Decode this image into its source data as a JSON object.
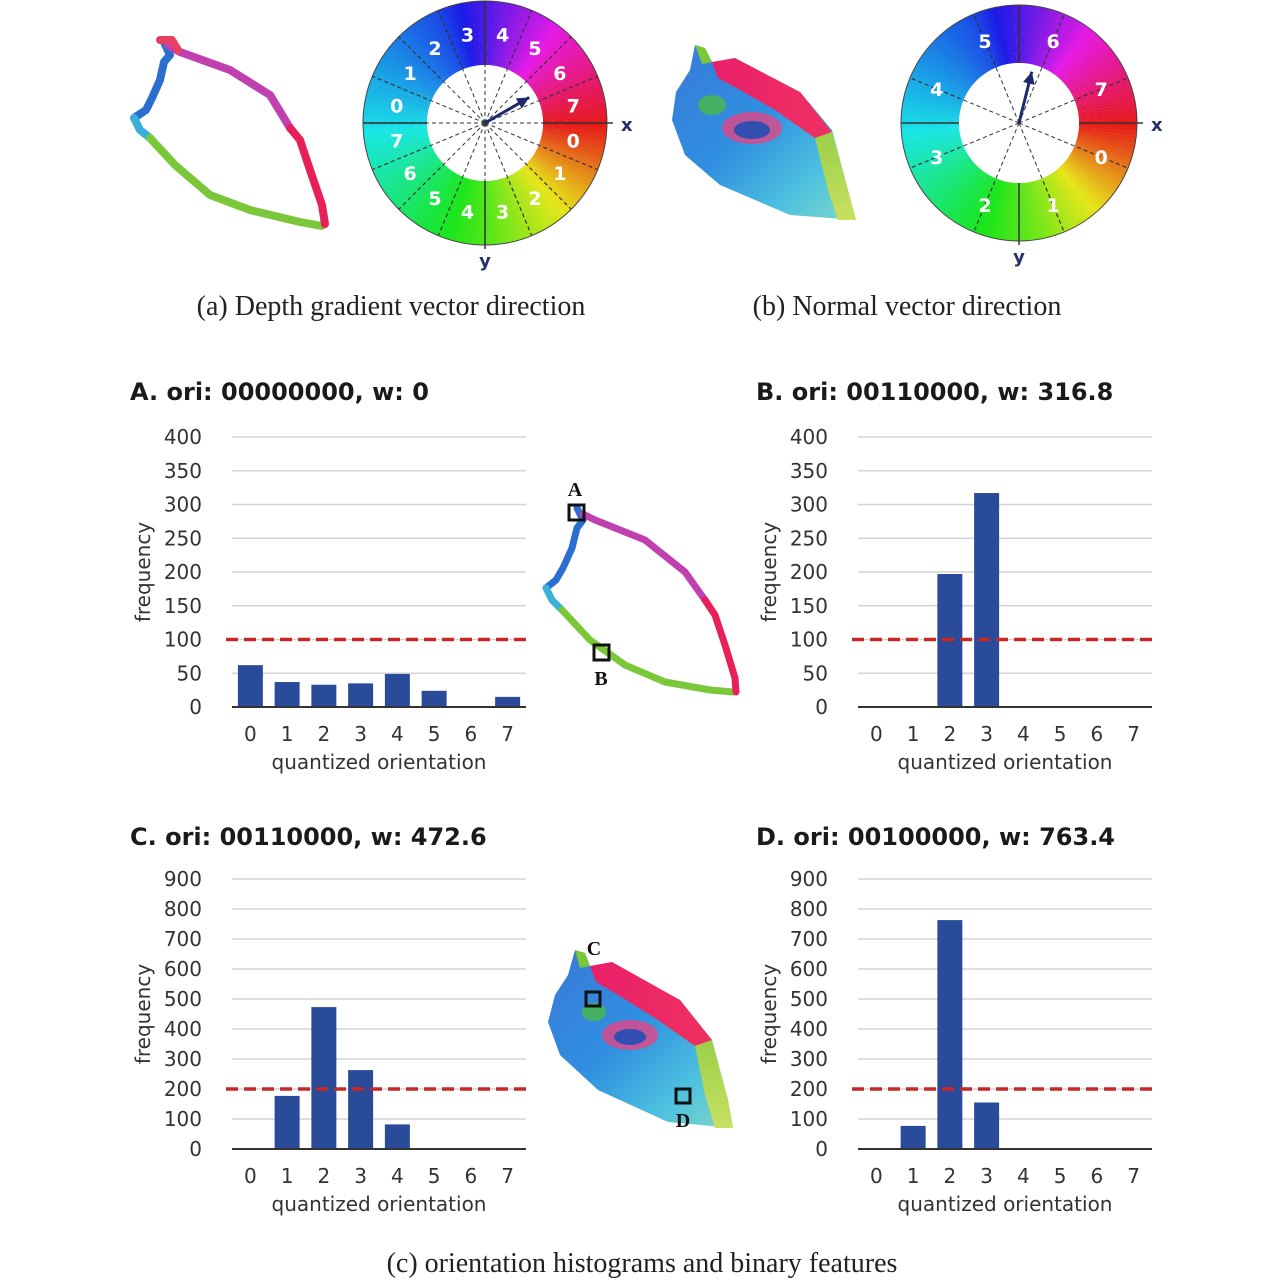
{
  "captions": {
    "a": "(a) Depth gradient vector direction",
    "b": "(b) Normal vector direction",
    "c": "(c) orientation histograms and binary features"
  },
  "wheel_a": {
    "labels": [
      "0",
      "1",
      "2",
      "3",
      "4",
      "5",
      "6",
      "7",
      "0",
      "1",
      "2",
      "3",
      "4",
      "5",
      "6",
      "7"
    ],
    "x_label": "x",
    "y_label": "y",
    "arrow_bin": "6"
  },
  "wheel_b": {
    "labels": [
      "0",
      "1",
      "2",
      "3",
      "4",
      "5",
      "6",
      "7"
    ],
    "x_label": "x",
    "y_label": "y",
    "arrow_bin": "6"
  },
  "markers": {
    "A": "A",
    "B": "B",
    "C": "C",
    "D": "D"
  },
  "chart_data": [
    {
      "type": "bar",
      "title": "A.  ori: 00000000, w: 0",
      "categories": [
        "0",
        "1",
        "2",
        "3",
        "4",
        "5",
        "6",
        "7"
      ],
      "values": [
        62,
        37,
        33,
        35,
        49,
        24,
        0,
        15
      ],
      "ylim": [
        0,
        400
      ],
      "yticks": [
        "0",
        "50",
        "100",
        "150",
        "200",
        "250",
        "300",
        "350",
        "400"
      ],
      "ytick_values": [
        0,
        50,
        100,
        150,
        200,
        250,
        300,
        350,
        400
      ],
      "threshold": 100,
      "xlabel": "quantized orientation",
      "ylabel": "frequency"
    },
    {
      "type": "bar",
      "title": "B.  ori: 00110000, w: 316.8",
      "categories": [
        "0",
        "1",
        "2",
        "3",
        "4",
        "5",
        "6",
        "7"
      ],
      "values": [
        0,
        0,
        197,
        317,
        0,
        0,
        0,
        0
      ],
      "ylim": [
        0,
        400
      ],
      "yticks": [
        "0",
        "50",
        "100",
        "150",
        "200",
        "250",
        "300",
        "350",
        "400"
      ],
      "ytick_values": [
        0,
        50,
        100,
        150,
        200,
        250,
        300,
        350,
        400
      ],
      "threshold": 100,
      "xlabel": "quantized orientation",
      "ylabel": "frequency"
    },
    {
      "type": "bar",
      "title": "C.  ori: 00110000, w: 472.6",
      "categories": [
        "0",
        "1",
        "2",
        "3",
        "4",
        "5",
        "6",
        "7"
      ],
      "values": [
        0,
        177,
        473,
        263,
        82,
        0,
        0,
        0
      ],
      "ylim": [
        0,
        900
      ],
      "yticks": [
        "0",
        "100",
        "200",
        "300",
        "400",
        "500",
        "600",
        "700",
        "800",
        "900"
      ],
      "ytick_values": [
        0,
        100,
        200,
        300,
        400,
        500,
        600,
        700,
        800,
        900
      ],
      "threshold": 200,
      "xlabel": "quantized orientation",
      "ylabel": "frequency"
    },
    {
      "type": "bar",
      "title": "D.  ori: 00100000, w: 763.4",
      "categories": [
        "0",
        "1",
        "2",
        "3",
        "4",
        "5",
        "6",
        "7"
      ],
      "values": [
        0,
        77,
        763,
        155,
        0,
        0,
        0,
        0
      ],
      "ylim": [
        0,
        900
      ],
      "yticks": [
        "0",
        "100",
        "200",
        "300",
        "400",
        "500",
        "600",
        "700",
        "800",
        "900"
      ],
      "ytick_values": [
        0,
        100,
        200,
        300,
        400,
        500,
        600,
        700,
        800,
        900
      ],
      "threshold": 200,
      "xlabel": "quantized orientation",
      "ylabel": "frequency"
    }
  ],
  "colors": {
    "bar": "#2a4a9a",
    "threshold": "#c62828",
    "grid": "#d4d4d4",
    "axis": "#333333"
  }
}
